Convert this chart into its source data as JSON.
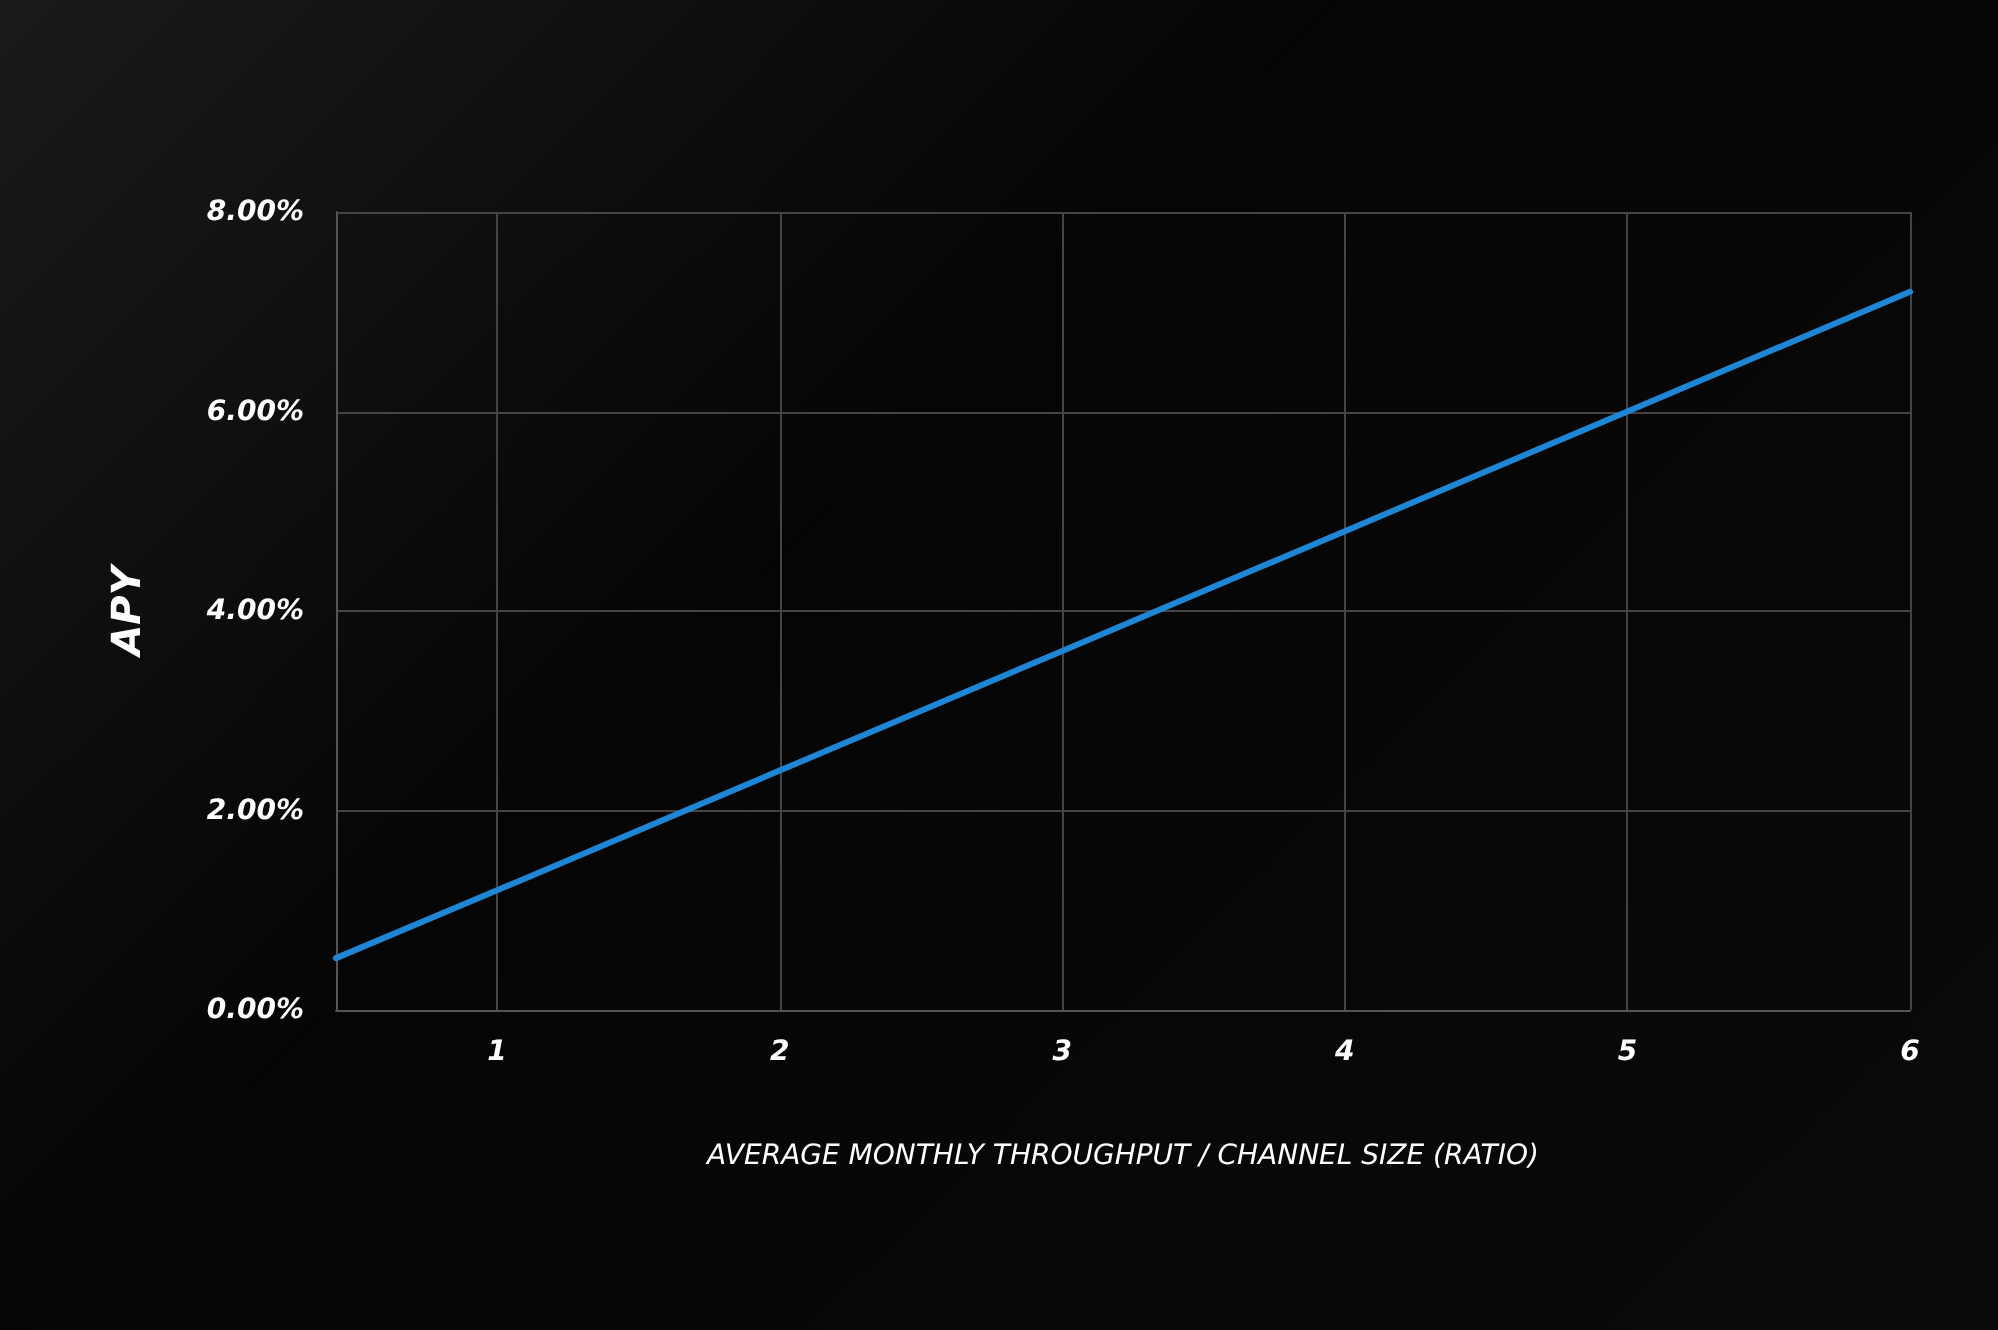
{
  "chart_data": {
    "type": "line",
    "xlabel": "AVERAGE MONTHLY THROUGHPUT / CHANNEL SIZE (RATIO)",
    "ylabel": "APY",
    "x": [
      0.43,
      1,
      2,
      3,
      4,
      5,
      6
    ],
    "series": [
      {
        "color": "#1f86d6",
        "values": [
          0.52,
          1.2,
          2.4,
          3.6,
          4.8,
          6.0,
          7.2
        ]
      }
    ],
    "xlim": [
      0.43,
      6
    ],
    "xticks": [
      1,
      2,
      3,
      4,
      5,
      6
    ],
    "ylim": [
      0,
      8
    ],
    "yticks": [
      {
        "value": 0,
        "label": "0.00%"
      },
      {
        "value": 2,
        "label": "2.00%"
      },
      {
        "value": 4,
        "label": "4.00%"
      },
      {
        "value": 6,
        "label": "6.00%"
      },
      {
        "value": 8,
        "label": "8.00%"
      }
    ],
    "grid": true,
    "marker": "none",
    "line_style": "solid"
  }
}
